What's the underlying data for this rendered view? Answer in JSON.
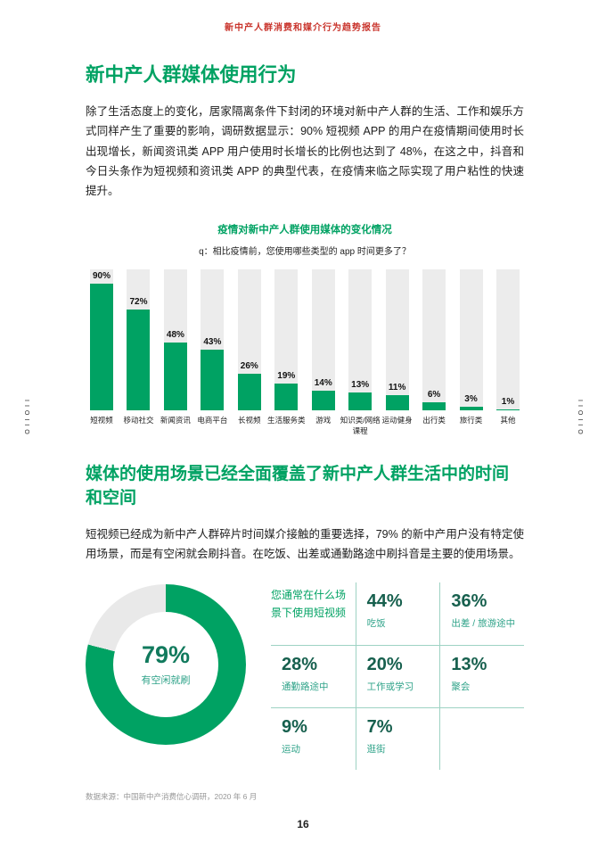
{
  "page": {
    "header_title": "新中产人群消费和媒介行为趋势报告",
    "side_mark": "IIOIIO",
    "footnote": "数据来源：中国新中产消费信心调研，2020 年 6 月",
    "page_number": "16"
  },
  "section1": {
    "title": "新中产人群媒体使用行为",
    "body": "除了生活态度上的变化，居家隔离条件下封闭的环境对新中产人群的生活、工作和娱乐方式同样产生了重要的影响，调研数据显示：90% 短视频 APP 的用户在疫情期间使用时长出现增长，新闻资讯类 APP 用户使用时长增长的比例也达到了 48%，在这之中，抖音和今日头条作为短视频和资讯类 APP 的典型代表，在疫情来临之际实现了用户粘性的快速提升。"
  },
  "section2": {
    "title": "媒体的使用场景已经全面覆盖了新中产人群生活中的时间和空间",
    "body": "短视频已经成为新中产人群碎片时间媒介接触的重要选择，79% 的新中产用户没有特定使用场景，而是有空闲就会刷抖音。在吃饭、出差或通勤路途中刷抖音是主要的使用场景。"
  },
  "chart_data": [
    {
      "type": "bar",
      "title": "疫情对新中产人群使用媒体的变化情况",
      "subtitle": "q：相比疫情前，您使用哪些类型的 app 时间更多了？",
      "categories": [
        "短视频",
        "移动社交",
        "新闻资讯",
        "电商平台",
        "长视频",
        "生活服务类",
        "游戏",
        "知识类/网络课程",
        "运动健身",
        "出行类",
        "旅行类",
        "其他"
      ],
      "values": [
        90,
        72,
        48,
        43,
        26,
        19,
        14,
        13,
        11,
        6,
        3,
        1
      ],
      "value_suffix": "%",
      "ylim": [
        0,
        100
      ],
      "bar_color": "#00a263",
      "track_color": "#ececec",
      "grid": false,
      "legend": false
    },
    {
      "type": "pie",
      "style": "donut",
      "center_value": "79%",
      "center_label": "有空闲就刷",
      "slices": [
        {
          "label": "有空闲就刷",
          "value": 79,
          "color": "#00a263"
        },
        {
          "label": "",
          "value": 21,
          "color": "#e9e9e9"
        }
      ]
    },
    {
      "type": "table",
      "question": "您通常在什么场景下使用短视频",
      "items": [
        {
          "value": "44%",
          "label": "吃饭"
        },
        {
          "value": "36%",
          "label": "出差 / 旅游途中"
        },
        {
          "value": "28%",
          "label": "通勤路途中"
        },
        {
          "value": "20%",
          "label": "工作或学习"
        },
        {
          "value": "13%",
          "label": "聚会"
        },
        {
          "value": "9%",
          "label": "运动"
        },
        {
          "value": "7%",
          "label": "逛街"
        }
      ]
    }
  ],
  "colors": {
    "green": "#00a263",
    "value_dark": "#17604e",
    "teal_label": "#2fa389",
    "grid_border": "#9ed2c3",
    "header_red": "#c9342c",
    "bar_track": "#ececec"
  }
}
